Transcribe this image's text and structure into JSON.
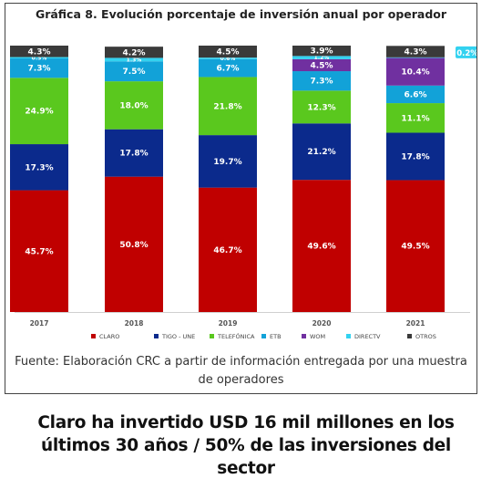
{
  "chart_data": {
    "type": "bar",
    "stacked": true,
    "title": "Gráfica 8. Evolución porcentaje de inversión anual por operador",
    "categories": [
      "2017",
      "2018",
      "2019",
      "2020",
      "2021"
    ],
    "ylim": [
      0,
      100
    ],
    "legend_position": "bottom",
    "series": [
      {
        "name": "CLARO",
        "color": "#c00000",
        "values": [
          45.7,
          50.8,
          46.7,
          49.6,
          49.5
        ],
        "labels": [
          "45.7%",
          "50.8%",
          "46.7%",
          "49.6%",
          "49.5%"
        ]
      },
      {
        "name": "TIGO - UNE",
        "color": "#0b2a8c",
        "values": [
          17.3,
          17.8,
          19.7,
          21.2,
          17.8
        ],
        "labels": [
          "17.3%",
          "17.8%",
          "19.7%",
          "21.2%",
          "17.8%"
        ]
      },
      {
        "name": "TELEFÓNICA",
        "color": "#5ac81e",
        "values": [
          24.9,
          18.0,
          21.8,
          12.3,
          11.1
        ],
        "labels": [
          "24.9%",
          "18.0%",
          "21.8%",
          "12.3%",
          "11.1%"
        ]
      },
      {
        "name": "ETB",
        "color": "#12a2d8",
        "values": [
          7.3,
          7.5,
          6.7,
          7.3,
          6.6
        ],
        "labels": [
          "7.3%",
          "7.5%",
          "6.7%",
          "7.3%",
          "6.6%"
        ]
      },
      {
        "name": "WOM",
        "color": "#7030a0",
        "values": [
          0,
          0,
          0,
          4.5,
          10.4
        ],
        "labels": [
          "",
          "",
          "",
          "4.5%",
          "10.4%"
        ]
      },
      {
        "name": "DIRECTV",
        "color": "#33d2f0",
        "values": [
          0.5,
          1.3,
          0.6,
          1.2,
          0.2
        ],
        "labels": [
          "0.5%",
          "1.3%",
          "0.6%",
          "1.2%",
          "0.2%"
        ]
      },
      {
        "name": "OTROS",
        "color": "#3a3a3a",
        "values": [
          4.3,
          4.2,
          4.5,
          3.9,
          4.3
        ],
        "labels": [
          "4.3%",
          "4.2%",
          "4.5%",
          "3.9%",
          "4.3%"
        ]
      }
    ]
  },
  "source_text": "Fuente: Elaboración CRC a partir de información entregada por una muestra de operadores",
  "headline": "Claro ha invertido USD 16 mil millones en los últimos 30 años / 50% de las inversiones del sector"
}
